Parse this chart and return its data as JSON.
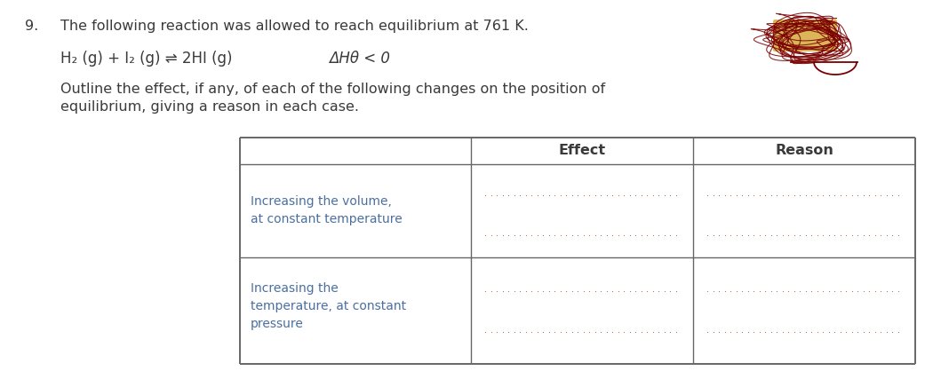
{
  "question_number": "9.",
  "title_text": "The following reaction was allowed to reach equilibrium at 761 K.",
  "equation_line": "H₂ (g) + I₂ (g) ⇌ 2HI (g)",
  "enthalpy": "ΔHθ < 0",
  "desc_line1": "Outline the effect, if any, of each of the following changes on the position of",
  "desc_line2": "equilibrium, giving a reason in each case.",
  "col_header_1": "Effect",
  "col_header_2": "Reason",
  "row1_label_line1": "Increasing the volume,",
  "row1_label_line2": "at constant temperature",
  "row2_label_line1": "Increasing the",
  "row2_label_line2": "temperature, at constant",
  "row2_label_line3": "pressure",
  "text_color": "#3a3a3a",
  "label_color": "#4a6fa0",
  "table_border_color": "#666666",
  "dot_color": "#b06840",
  "background": "#ffffff",
  "scribble_color_dark": "#7a0000",
  "scribble_color_yellow": "#c89000",
  "fig_width": 10.5,
  "fig_height": 4.18,
  "dpi": 100
}
